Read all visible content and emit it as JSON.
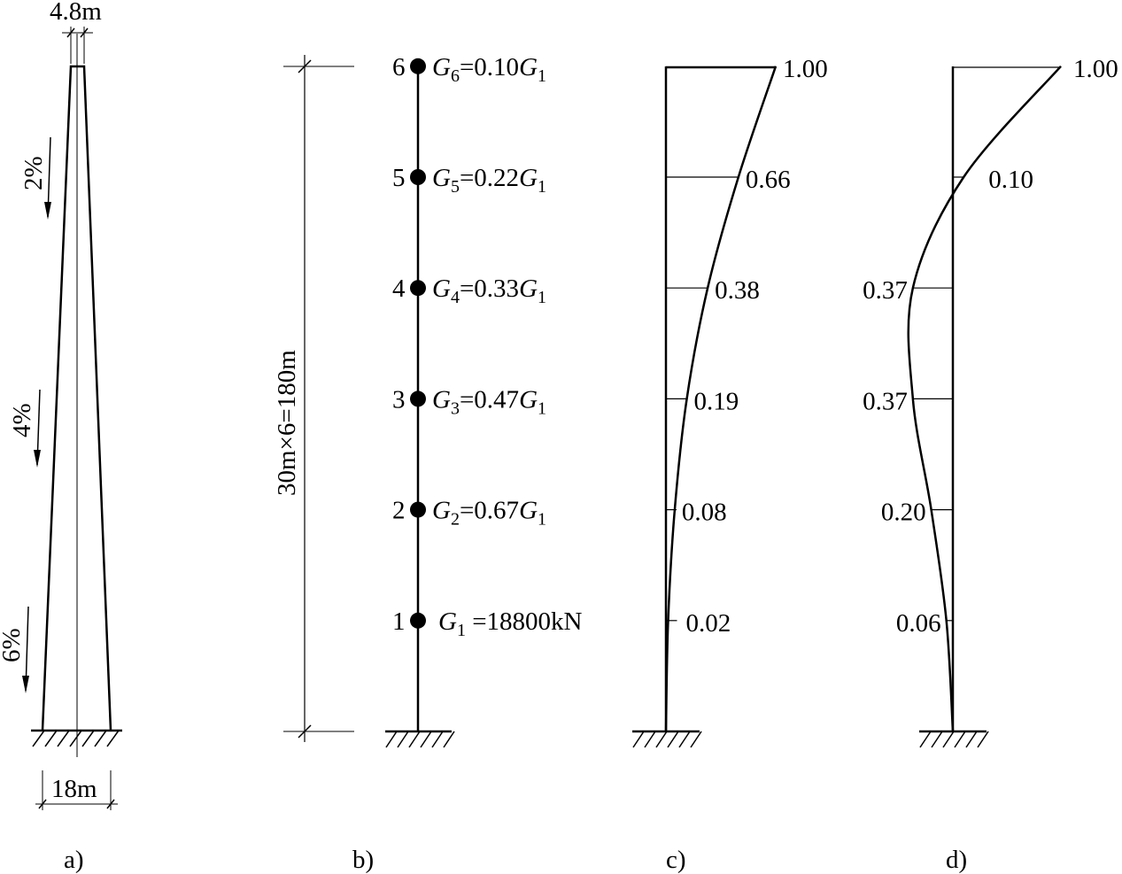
{
  "panels": {
    "a": {
      "label": "a)",
      "top_width": "4.8m",
      "base_width": "18m",
      "slopes": [
        "2%",
        "4%",
        "6%"
      ]
    },
    "b": {
      "label": "b)",
      "height_dim": "30m×6=180m",
      "nodes": [
        {
          "n": "6",
          "g": "G",
          "sub": "6",
          "eq": "=0.10",
          "g1": "G",
          "g1sub": "1"
        },
        {
          "n": "5",
          "g": "G",
          "sub": "5",
          "eq": "=0.22",
          "g1": "G",
          "g1sub": "1"
        },
        {
          "n": "4",
          "g": "G",
          "sub": "4",
          "eq": "=0.33",
          "g1": "G",
          "g1sub": "1"
        },
        {
          "n": "3",
          "g": "G",
          "sub": "3",
          "eq": "=0.47",
          "g1": "G",
          "g1sub": "1"
        },
        {
          "n": "2",
          "g": "G",
          "sub": "2",
          "eq": "=0.67",
          "g1": "G",
          "g1sub": "1"
        },
        {
          "n": "1",
          "g": "G",
          "sub": "1",
          "eq": " =18800kN",
          "g1": "",
          "g1sub": ""
        }
      ]
    },
    "c": {
      "label": "c)",
      "values": [
        "1.00",
        "0.66",
        "0.38",
        "0.19",
        "0.08",
        "0.02"
      ]
    },
    "d": {
      "label": "d)",
      "values": [
        "1.00",
        "0.10",
        "0.37",
        "0.37",
        "0.20",
        "0.06"
      ],
      "signs": [
        1,
        1,
        -1,
        -1,
        -1,
        -1
      ]
    }
  }
}
